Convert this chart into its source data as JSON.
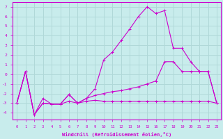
{
  "xlabel": "Windchill (Refroidissement éolien,°C)",
  "ylabel": "",
  "bg_color": "#c8ecec",
  "grid_color": "#b0d8d8",
  "line_color": "#cc00cc",
  "x_ticks": [
    0,
    1,
    2,
    3,
    4,
    5,
    6,
    7,
    8,
    9,
    10,
    11,
    12,
    13,
    14,
    15,
    16,
    17,
    18,
    19,
    20,
    21,
    22,
    23
  ],
  "y_ticks": [
    -4,
    -3,
    -2,
    -1,
    0,
    1,
    2,
    3,
    4,
    5,
    6,
    7
  ],
  "xlim": [
    -0.5,
    23.5
  ],
  "ylim": [
    -4.7,
    7.5
  ],
  "series": [
    {
      "x": [
        0,
        1,
        2,
        3,
        4,
        5,
        6,
        7,
        8,
        9,
        10,
        11,
        12,
        13,
        14,
        15,
        16,
        17,
        18,
        19,
        20,
        21,
        22,
        23
      ],
      "y": [
        -3.0,
        0.3,
        -4.2,
        -2.5,
        -3.1,
        -3.1,
        -2.1,
        -3.0,
        -2.5,
        -1.5,
        1.5,
        2.3,
        3.5,
        4.7,
        6.0,
        7.0,
        6.3,
        6.6,
        2.7,
        2.7,
        1.3,
        0.3,
        0.3,
        -3.0
      ]
    },
    {
      "x": [
        0,
        1,
        2,
        3,
        4,
        5,
        6,
        7,
        8,
        9,
        10,
        11,
        12,
        13,
        14,
        15,
        16,
        17,
        18,
        19,
        20,
        21,
        22,
        23
      ],
      "y": [
        -3.0,
        0.3,
        -4.2,
        -3.0,
        -3.1,
        -3.1,
        -2.8,
        -3.0,
        -2.5,
        -2.2,
        -2.0,
        -1.8,
        -1.7,
        -1.5,
        -1.3,
        -1.0,
        -0.7,
        1.3,
        1.3,
        0.3,
        0.3,
        0.3,
        0.3,
        -3.0
      ]
    },
    {
      "x": [
        0,
        1,
        2,
        3,
        4,
        5,
        6,
        7,
        8,
        9,
        10,
        11,
        12,
        13,
        14,
        15,
        16,
        17,
        18,
        19,
        20,
        21,
        22,
        23
      ],
      "y": [
        -3.0,
        0.3,
        -4.2,
        -3.0,
        -3.1,
        -3.1,
        -2.1,
        -3.0,
        -2.8,
        -2.7,
        -2.8,
        -2.8,
        -2.8,
        -2.8,
        -2.8,
        -2.8,
        -2.8,
        -2.8,
        -2.8,
        -2.8,
        -2.8,
        -2.8,
        -2.8,
        -3.0
      ]
    }
  ]
}
